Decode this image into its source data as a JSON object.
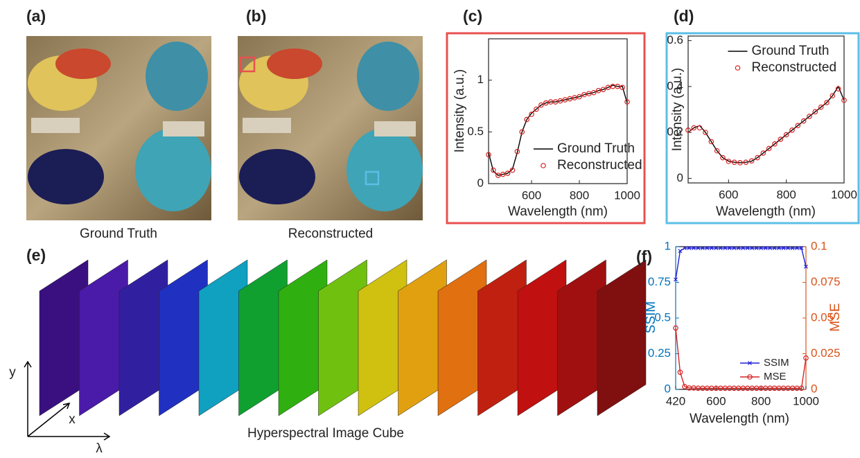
{
  "figure": {
    "labels": [
      "(a)",
      "(b)",
      "(c)",
      "(d)",
      "(e)",
      "(f)"
    ],
    "captions": [
      "Ground Truth",
      "Reconstructed",
      "Hyperspectral Image Cube"
    ],
    "axis_letters": [
      "y",
      "x",
      "λ"
    ]
  },
  "chart_data": [
    {
      "type": "line",
      "xlabel": "Wavelength (nm)",
      "ylabel": "Intensity (a.u.)",
      "x": [
        420,
        440,
        460,
        480,
        500,
        520,
        540,
        560,
        580,
        600,
        620,
        640,
        660,
        680,
        700,
        720,
        740,
        760,
        780,
        800,
        820,
        840,
        860,
        880,
        900,
        920,
        940,
        960,
        980,
        1000
      ],
      "series": [
        {
          "name": "Ground Truth",
          "color": "#000000",
          "style": "line",
          "values": [
            0.3,
            0.12,
            0.08,
            0.09,
            0.1,
            0.14,
            0.3,
            0.5,
            0.62,
            0.68,
            0.72,
            0.76,
            0.78,
            0.79,
            0.79,
            0.8,
            0.81,
            0.82,
            0.83,
            0.84,
            0.86,
            0.87,
            0.88,
            0.9,
            0.91,
            0.93,
            0.95,
            0.94,
            0.94,
            0.78
          ]
        },
        {
          "name": "Reconstructed",
          "color": "#d62020",
          "style": "circle",
          "values": [
            0.28,
            0.13,
            0.08,
            0.09,
            0.1,
            0.13,
            0.31,
            0.5,
            0.62,
            0.67,
            0.72,
            0.76,
            0.78,
            0.79,
            0.79,
            0.8,
            0.81,
            0.82,
            0.83,
            0.84,
            0.86,
            0.87,
            0.88,
            0.9,
            0.91,
            0.93,
            0.94,
            0.94,
            0.93,
            0.79
          ]
        }
      ],
      "xlim": [
        420,
        1000
      ],
      "xticks": [
        600,
        800,
        1000
      ],
      "ylim": [
        0,
        1.4
      ],
      "yticks": [
        0,
        0.5,
        1
      ],
      "legend": "lower right",
      "frame_color": "#e8504f"
    },
    {
      "type": "line",
      "xlabel": "Wavelength (nm)",
      "ylabel": "Intensity (a.u.)",
      "x": [
        460,
        480,
        500,
        520,
        540,
        560,
        580,
        600,
        620,
        640,
        660,
        680,
        700,
        720,
        740,
        760,
        780,
        800,
        820,
        840,
        860,
        880,
        900,
        920,
        940,
        960,
        980,
        1000
      ],
      "series": [
        {
          "name": "Ground Truth",
          "color": "#000000",
          "style": "line",
          "values": [
            0.2,
            0.22,
            0.23,
            0.2,
            0.16,
            0.12,
            0.09,
            0.075,
            0.07,
            0.068,
            0.07,
            0.075,
            0.09,
            0.11,
            0.13,
            0.15,
            0.17,
            0.19,
            0.21,
            0.23,
            0.25,
            0.27,
            0.29,
            0.31,
            0.33,
            0.36,
            0.4,
            0.34
          ]
        },
        {
          "name": "Reconstructed",
          "color": "#d62020",
          "style": "circle",
          "values": [
            0.21,
            0.22,
            0.22,
            0.2,
            0.16,
            0.12,
            0.09,
            0.074,
            0.07,
            0.068,
            0.07,
            0.076,
            0.09,
            0.11,
            0.13,
            0.15,
            0.17,
            0.19,
            0.21,
            0.23,
            0.25,
            0.27,
            0.29,
            0.31,
            0.33,
            0.36,
            0.39,
            0.34
          ]
        }
      ],
      "xlim": [
        460,
        1000
      ],
      "xticks": [
        600,
        800,
        1000
      ],
      "ylim": [
        -0.02,
        0.62
      ],
      "yticks": [
        0,
        0.2,
        0.4,
        0.6
      ],
      "legend": "upper center",
      "frame_color": "#5bbfe6"
    },
    {
      "type": "line",
      "xlabel": "Wavelength (nm)",
      "ylabel": "SSIM",
      "y2label": "MSE",
      "ycolor": "#0072bd",
      "y2color": "#d95319",
      "x": [
        420,
        440,
        460,
        480,
        500,
        520,
        540,
        560,
        580,
        600,
        620,
        640,
        660,
        680,
        700,
        720,
        740,
        760,
        780,
        800,
        820,
        840,
        860,
        880,
        900,
        920,
        940,
        960,
        980,
        1000
      ],
      "series": [
        {
          "name": "SSIM",
          "color": "#1f1fd6",
          "style": "line-x",
          "values": [
            0.77,
            0.97,
            0.99,
            0.99,
            0.99,
            0.99,
            0.99,
            0.99,
            0.99,
            0.99,
            0.99,
            0.99,
            0.99,
            0.99,
            0.99,
            0.99,
            0.99,
            0.99,
            0.99,
            0.99,
            0.99,
            0.99,
            0.99,
            0.99,
            0.99,
            0.99,
            0.99,
            0.99,
            0.99,
            0.86
          ]
        },
        {
          "name": "MSE",
          "color": "#d62020",
          "style": "line-circle",
          "axis": "y2",
          "values": [
            0.043,
            0.012,
            0.002,
            0.001,
            0.001,
            0.0008,
            0.0008,
            0.0008,
            0.0008,
            0.0008,
            0.0008,
            0.0008,
            0.0008,
            0.0008,
            0.0008,
            0.0008,
            0.0008,
            0.0008,
            0.0008,
            0.0008,
            0.0008,
            0.0008,
            0.0008,
            0.0008,
            0.0008,
            0.0008,
            0.0008,
            0.0008,
            0.0008,
            0.022
          ]
        }
      ],
      "xlim": [
        420,
        1000
      ],
      "xticks": [
        420,
        600,
        800,
        1000
      ],
      "ylim": [
        0,
        1
      ],
      "yticks": [
        0,
        0.25,
        0.5,
        0.75,
        1
      ],
      "y2lim": [
        0,
        0.1
      ],
      "y2ticks": [
        0,
        0.025,
        0.05,
        0.075,
        0.1
      ],
      "legend": "lower right"
    }
  ]
}
